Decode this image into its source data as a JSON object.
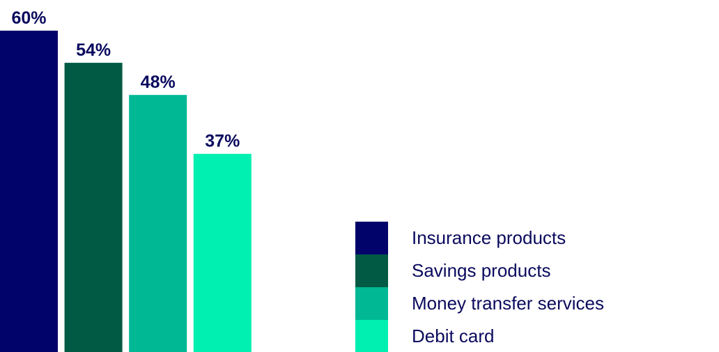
{
  "chart_data": {
    "type": "bar",
    "series": [
      {
        "name": "Insurance products",
        "color": "#02036a",
        "values": [
          60
        ],
        "value_labels": [
          "60%"
        ]
      },
      {
        "name": "Savings products",
        "color": "#005a44",
        "values": [
          54
        ],
        "value_labels": [
          "54%"
        ]
      },
      {
        "name": "Money transfer services",
        "color": "#00b994",
        "values": [
          48
        ],
        "value_labels": [
          "48%"
        ]
      },
      {
        "name": "Debit card",
        "color": "#00f0b2",
        "values": [
          37
        ],
        "value_labels": [
          "37%"
        ]
      }
    ]
  }
}
